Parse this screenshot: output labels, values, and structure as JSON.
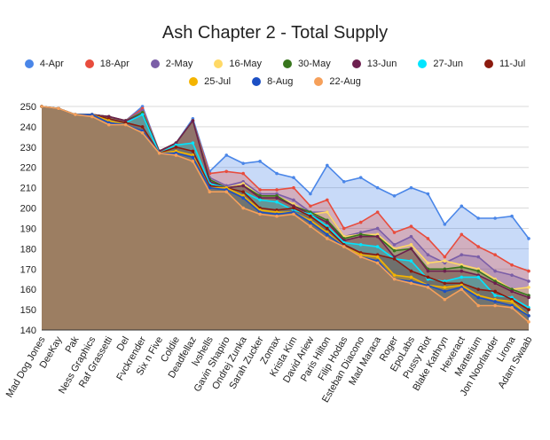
{
  "chart_data": {
    "type": "area",
    "title": "Ash Chapter 2 - Total Supply",
    "xlabel": "",
    "ylabel": "",
    "ylim": [
      140,
      250
    ],
    "yticks": [
      140,
      150,
      160,
      170,
      180,
      190,
      200,
      210,
      220,
      230,
      240,
      250
    ],
    "grid": true,
    "legend_position": "top",
    "categories": [
      "Mad Dog Jones",
      "DeeKay",
      "Pak",
      "Ness Graphics",
      "Raf Grassetti",
      "Del",
      "Fvckrender",
      "Six n Five",
      "Coldie",
      "Deadfellaz",
      "lvshells",
      "Gavin Shapiro",
      "Ondrej Zunka",
      "Sarah Zucker",
      "Zomax",
      "Krista Kim",
      "David Ariew",
      "Paris Hilton",
      "Filip Hodas",
      "Esteban Diacono",
      "Mad Maraca",
      "Roger",
      "EpoLabs",
      "Pussy Riot",
      "Blake Kathryn",
      "Hexeract",
      "Marterium",
      "Jon Noorlander",
      "Lirona",
      "Adam Swaab"
    ],
    "series": [
      {
        "name": "4-Apr",
        "color": "#4a86e8",
        "values": [
          250,
          249,
          246,
          246,
          245,
          243,
          250,
          228,
          232,
          244,
          218,
          226,
          222,
          223,
          217,
          215,
          207,
          221,
          213,
          215,
          210,
          206,
          210,
          207,
          192,
          201,
          195,
          195,
          196,
          185
        ]
      },
      {
        "name": "18-Apr",
        "color": "#e84c3d",
        "values": [
          250,
          249,
          246,
          246,
          245,
          243,
          249,
          228,
          232,
          243,
          217,
          218,
          217,
          209,
          209,
          210,
          201,
          204,
          190,
          193,
          198,
          188,
          191,
          185,
          176,
          187,
          181,
          177,
          172,
          169
        ]
      },
      {
        "name": "2-May",
        "color": "#7b5ea7",
        "values": [
          250,
          249,
          246,
          246,
          245,
          243,
          248,
          228,
          232,
          243,
          215,
          211,
          213,
          207,
          207,
          204,
          198,
          198,
          186,
          188,
          190,
          182,
          186,
          177,
          173,
          177,
          176,
          169,
          167,
          164
        ]
      },
      {
        "name": "16-May",
        "color": "#ffd966",
        "values": [
          250,
          249,
          246,
          246,
          245,
          243,
          247,
          228,
          232,
          243,
          214,
          210,
          212,
          206,
          206,
          202,
          197,
          198,
          186,
          187,
          187,
          180,
          182,
          173,
          174,
          172,
          170,
          165,
          160,
          161
        ]
      },
      {
        "name": "30-May",
        "color": "#38761d",
        "values": [
          250,
          249,
          246,
          246,
          245,
          243,
          247,
          228,
          232,
          243,
          214,
          210,
          211,
          206,
          206,
          201,
          198,
          194,
          185,
          187,
          186,
          179,
          180,
          170,
          170,
          171,
          169,
          164,
          160,
          157
        ]
      },
      {
        "name": "13-Jun",
        "color": "#6d1f4f",
        "values": [
          250,
          249,
          246,
          246,
          245,
          243,
          246,
          228,
          232,
          243,
          213,
          210,
          211,
          205,
          205,
          201,
          197,
          193,
          184,
          186,
          186,
          176,
          180,
          169,
          169,
          169,
          167,
          163,
          159,
          156
        ]
      },
      {
        "name": "27-Jun",
        "color": "#00e5ff",
        "values": [
          250,
          249,
          246,
          246,
          244,
          242,
          246,
          227,
          231,
          232,
          212,
          210,
          208,
          204,
          203,
          199,
          197,
          191,
          183,
          182,
          181,
          175,
          174,
          165,
          164,
          166,
          166,
          157,
          156,
          151
        ]
      },
      {
        "name": "11-Jul",
        "color": "#8b1a0e",
        "values": [
          250,
          249,
          246,
          246,
          244,
          242,
          240,
          227,
          230,
          228,
          211,
          210,
          208,
          200,
          199,
          200,
          196,
          190,
          182,
          178,
          177,
          175,
          169,
          166,
          163,
          163,
          160,
          159,
          155,
          150
        ]
      },
      {
        "name": "25-Jul",
        "color": "#f4b400",
        "values": [
          250,
          249,
          246,
          246,
          243,
          241,
          238,
          227,
          228,
          226,
          210,
          210,
          206,
          199,
          198,
          198,
          194,
          188,
          181,
          177,
          176,
          167,
          166,
          162,
          161,
          162,
          157,
          155,
          154,
          147
        ]
      },
      {
        "name": "8-Aug",
        "color": "#1c4fc4",
        "values": [
          250,
          249,
          246,
          246,
          242,
          241,
          238,
          227,
          227,
          225,
          210,
          209,
          205,
          198,
          197,
          198,
          193,
          187,
          181,
          176,
          174,
          165,
          164,
          162,
          159,
          161,
          156,
          154,
          152,
          147
        ]
      },
      {
        "name": "22-Aug",
        "color": "#f6a05a",
        "values": [
          250,
          249,
          246,
          245,
          241,
          241,
          237,
          227,
          226,
          223,
          208,
          208,
          200,
          197,
          196,
          197,
          191,
          185,
          181,
          176,
          173,
          165,
          163,
          161,
          155,
          160,
          152,
          152,
          151,
          144
        ]
      }
    ]
  }
}
